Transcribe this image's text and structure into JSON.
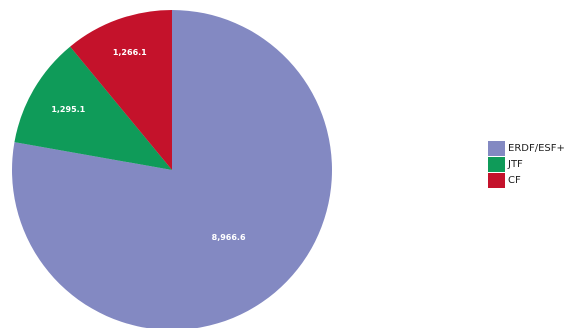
{
  "chart_data": {
    "type": "pie",
    "slices": [
      {
        "name": "ERDF/ESF+",
        "value": 8966.6,
        "value_label": "8,966.6",
        "color": "#8389c2"
      },
      {
        "name": "JTF",
        "value": 1295.1,
        "value_label": "1,295.1",
        "color": "#0f9b59"
      },
      {
        "name": "CF",
        "value": 1266.1,
        "value_label": "1,266.1",
        "color": "#c4122b"
      }
    ],
    "start_angle_from_top_deg": 0,
    "direction": "clockwise",
    "legend_position": "right"
  }
}
